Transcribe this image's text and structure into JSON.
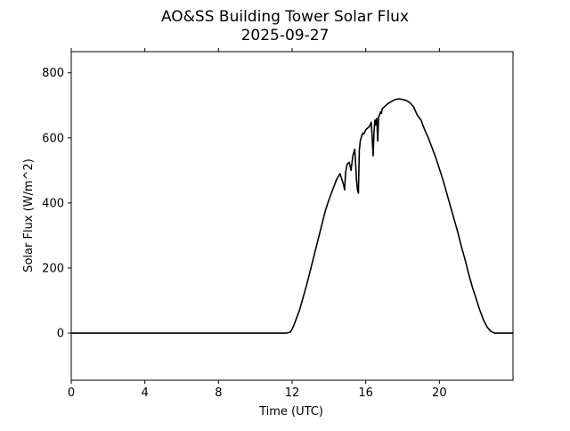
{
  "chart_data": {
    "type": "line",
    "title": "AO&SS Building Tower Solar Flux",
    "subtitle": "2025-09-27",
    "xlabel": "Time (UTC)",
    "ylabel": "Solar Flux (W/m^2)",
    "xlim": [
      0,
      24
    ],
    "ylim": [
      -145,
      865
    ],
    "xticks": [
      0,
      4,
      8,
      12,
      16,
      20
    ],
    "yticks": [
      0,
      200,
      400,
      600,
      800
    ],
    "grid": false,
    "legend": "none",
    "line_color": "#000000",
    "series": [
      {
        "x": [
          0,
          2,
          4,
          6,
          8,
          10,
          11,
          11.7,
          11.9,
          12.0,
          12.1,
          12.2,
          12.4,
          12.6,
          12.8,
          13.0,
          13.2,
          13.4,
          13.6,
          13.8,
          14.0,
          14.2,
          14.4,
          14.6,
          14.8,
          14.85,
          14.9,
          14.95,
          15.0,
          15.1,
          15.2,
          15.3,
          15.4,
          15.45,
          15.5,
          15.55,
          15.6,
          15.65,
          15.7,
          15.75,
          15.8,
          15.85,
          15.9,
          15.95,
          16.0,
          16.1,
          16.2,
          16.3,
          16.35,
          16.4,
          16.45,
          16.5,
          16.55,
          16.6,
          16.65,
          16.7,
          16.75,
          16.8,
          16.85,
          16.9,
          17.0,
          17.2,
          17.4,
          17.6,
          17.8,
          18.0,
          18.2,
          18.4,
          18.6,
          18.8,
          19.0,
          19.2,
          19.4,
          19.6,
          19.8,
          20.0,
          20.2,
          20.4,
          20.6,
          20.8,
          21.0,
          21.2,
          21.4,
          21.6,
          21.8,
          22.0,
          22.2,
          22.4,
          22.6,
          22.8,
          23.0,
          23.2,
          23.4,
          23.6,
          23.7,
          23.8,
          24.0
        ],
        "values": [
          0,
          0,
          0,
          0,
          0,
          0,
          0,
          0,
          3,
          12,
          25,
          40,
          70,
          110,
          150,
          195,
          240,
          285,
          330,
          375,
          410,
          440,
          470,
          490,
          455,
          440,
          490,
          510,
          520,
          525,
          500,
          545,
          565,
          520,
          470,
          440,
          430,
          560,
          590,
          600,
          610,
          615,
          612,
          618,
          625,
          630,
          635,
          648,
          600,
          545,
          620,
          655,
          640,
          660,
          590,
          665,
          670,
          680,
          675,
          690,
          695,
          705,
          712,
          718,
          720,
          718,
          715,
          708,
          695,
          670,
          655,
          625,
          600,
          570,
          540,
          505,
          470,
          430,
          390,
          350,
          310,
          265,
          225,
          180,
          140,
          105,
          70,
          40,
          18,
          5,
          0,
          0,
          0,
          0,
          0,
          0,
          0
        ]
      }
    ]
  }
}
